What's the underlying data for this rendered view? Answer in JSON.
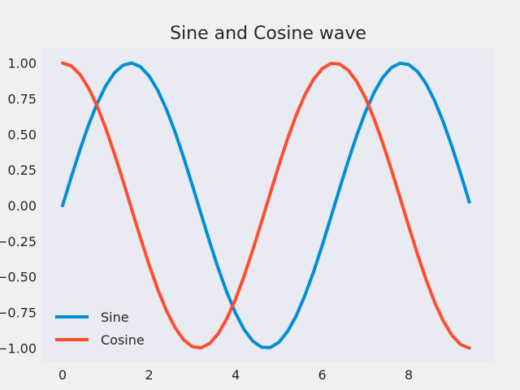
{
  "chart_data": {
    "type": "line",
    "title": "Sine and Cosine wave",
    "xlabel": "",
    "ylabel": "",
    "xlim": [
      -0.47,
      9.97
    ],
    "ylim": [
      -1.1,
      1.1
    ],
    "xticks": [
      0,
      2,
      4,
      6,
      8
    ],
    "xtick_labels": [
      "0",
      "2",
      "4",
      "6",
      "8"
    ],
    "yticks": [
      1.0,
      0.75,
      0.5,
      0.25,
      0.0,
      -0.25,
      -0.5,
      -0.75,
      -1.0
    ],
    "ytick_labels": [
      "1.00",
      "0.75",
      "0.50",
      "0.25",
      "0.00",
      "−0.25",
      "−0.50",
      "−0.75",
      "−1.00"
    ],
    "grid": false,
    "legend_placement": "lower-left",
    "background_color": "#eaeaf2",
    "figure_color": "#f0f0f0",
    "x": [
      0.0,
      0.2,
      0.4,
      0.6,
      0.8,
      1.0,
      1.2,
      1.4,
      1.6,
      1.8,
      2.0,
      2.2,
      2.4,
      2.6,
      2.8,
      3.0,
      3.2,
      3.4,
      3.6,
      3.8,
      4.0,
      4.2,
      4.4,
      4.6,
      4.8,
      5.0,
      5.2,
      5.4,
      5.6,
      5.8,
      6.0,
      6.2,
      6.4,
      6.6,
      6.8,
      7.0,
      7.2,
      7.4,
      7.6,
      7.8,
      8.0,
      8.2,
      8.4,
      8.6,
      8.8,
      9.0,
      9.2,
      9.4
    ],
    "series": [
      {
        "name": "Sine",
        "color": "#008fd5",
        "values": [
          0.0,
          0.199,
          0.389,
          0.565,
          0.717,
          0.841,
          0.932,
          0.985,
          1.0,
          0.974,
          0.909,
          0.808,
          0.675,
          0.516,
          0.335,
          0.141,
          -0.058,
          -0.256,
          -0.443,
          -0.612,
          -0.757,
          -0.872,
          -0.952,
          -0.994,
          -0.996,
          -0.959,
          -0.883,
          -0.773,
          -0.631,
          -0.465,
          -0.279,
          -0.083,
          0.117,
          0.312,
          0.494,
          0.657,
          0.794,
          0.899,
          0.968,
          0.999,
          0.989,
          0.941,
          0.855,
          0.734,
          0.585,
          0.412,
          0.223,
          0.025
        ]
      },
      {
        "name": "Cosine",
        "color": "#fc4f30",
        "values": [
          1.0,
          0.98,
          0.921,
          0.825,
          0.697,
          0.54,
          0.362,
          0.17,
          -0.029,
          -0.227,
          -0.416,
          -0.589,
          -0.737,
          -0.857,
          -0.942,
          -0.99,
          -0.998,
          -0.967,
          -0.897,
          -0.791,
          -0.654,
          -0.49,
          -0.307,
          -0.112,
          0.087,
          0.284,
          0.469,
          0.635,
          0.776,
          0.886,
          0.96,
          0.997,
          0.993,
          0.95,
          0.869,
          0.754,
          0.608,
          0.438,
          0.25,
          0.054,
          -0.146,
          -0.339,
          -0.519,
          -0.68,
          -0.811,
          -0.911,
          -0.975,
          -1.0
        ]
      }
    ]
  }
}
